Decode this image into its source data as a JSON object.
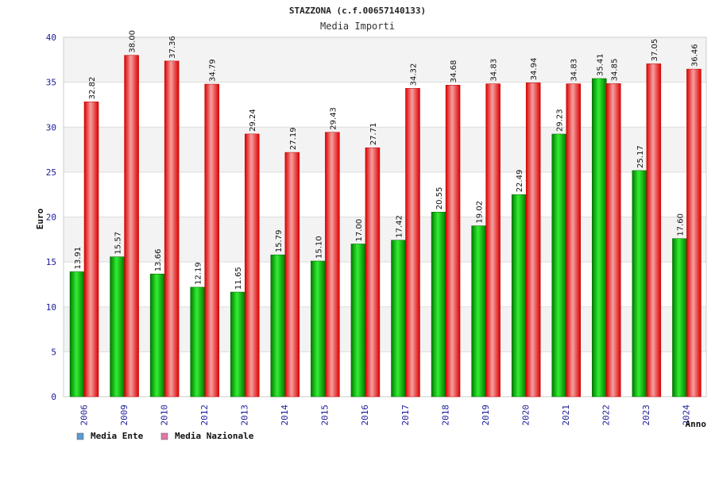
{
  "chart_data": {
    "type": "bar",
    "title": "STAZZONA (c.f.00657140133)",
    "subtitle": "Media Importi",
    "xlabel": "Anno",
    "ylabel": "Euro",
    "ylim": [
      0,
      40
    ],
    "yticks": [
      0,
      5,
      10,
      15,
      20,
      25,
      30,
      35,
      40
    ],
    "grid": true,
    "legend_position": "bottom-left",
    "categories": [
      "2006",
      "2009",
      "2010",
      "2012",
      "2013",
      "2014",
      "2015",
      "2016",
      "2017",
      "2018",
      "2019",
      "2020",
      "2021",
      "2022",
      "2023",
      "2024"
    ],
    "series": [
      {
        "name": "Media Ente",
        "legend_color": "#5b9bd5",
        "bar_color": "#00b300",
        "values": [
          13.91,
          15.57,
          13.66,
          12.19,
          11.65,
          15.79,
          15.1,
          17.0,
          17.42,
          20.55,
          19.02,
          22.49,
          29.23,
          35.41,
          25.17,
          17.6
        ],
        "labels": [
          "13.91",
          "15.57",
          "13.66",
          "12.19",
          "11.65",
          "15.79",
          "15.10",
          "17.00",
          "17.42",
          "20.55",
          "19.02",
          "22.49",
          "29.23",
          "35.41",
          "25.17",
          "17.60"
        ]
      },
      {
        "name": "Media Nazionale",
        "legend_color": "#e07aa8",
        "bar_color": "#ee1111",
        "values": [
          32.82,
          38.0,
          37.36,
          34.79,
          29.24,
          27.19,
          29.43,
          27.71,
          34.32,
          34.68,
          34.83,
          34.94,
          34.83,
          34.85,
          37.05,
          36.46
        ],
        "labels": [
          "32.82",
          "38.00",
          "37.36",
          "34.79",
          "29.24",
          "27.19",
          "29.43",
          "27.71",
          "34.32",
          "34.68",
          "34.83",
          "34.94",
          "34.83",
          "34.85",
          "37.05",
          "36.46"
        ]
      }
    ]
  }
}
